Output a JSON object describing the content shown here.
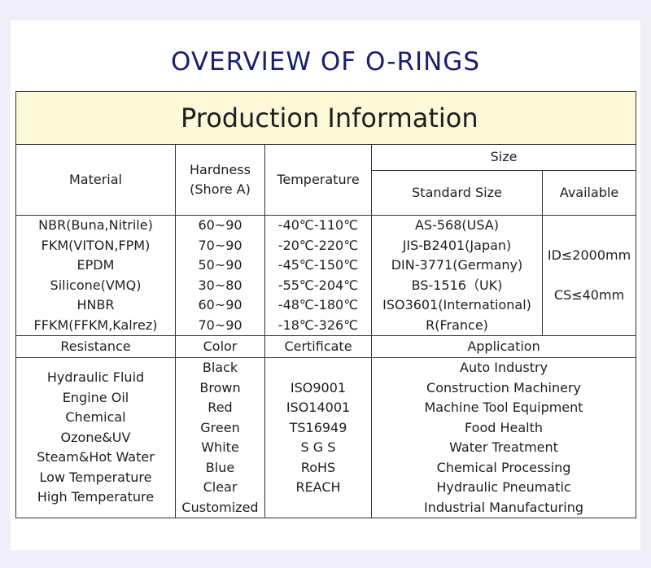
{
  "title": "OVERVIEW OF O-RINGS",
  "banner": "Production Information",
  "headers": {
    "material": "Material",
    "hardness_1": "Hardness",
    "hardness_2": "(Shore A)",
    "temperature": "Temperature",
    "size": "Size",
    "standard_size": "Standard Size",
    "available": "Available"
  },
  "materials": [
    "NBR(Buna,Nitrile)",
    "FKM(VITON,FPM)",
    "EPDM",
    "Silicone(VMQ)",
    "HNBR",
    "FFKM(FFKM,Kalrez)"
  ],
  "hardness": [
    "60~90",
    "70~90",
    "50~90",
    "30~80",
    "60~90",
    "70~90"
  ],
  "temperature": [
    "-40℃-110℃",
    "-20℃-220℃",
    "-45℃-150℃",
    "-55℃-204℃",
    "-48℃-180℃",
    "-18℃-326℃"
  ],
  "standards": [
    "AS-568(USA)",
    "JIS-B2401(Japan)",
    "DIN-3771(Germany)",
    "BS-1516（UK)",
    "ISO3601(International)",
    "R(France)"
  ],
  "available": [
    "ID≤2000mm",
    "CS≤40mm"
  ],
  "headers2": {
    "resistance": "Resistance",
    "color": "Color",
    "certificate": "Certificate",
    "application": "Application"
  },
  "resistance": [
    "Hydraulic Fluid",
    "Engine Oil",
    "Chemical",
    "Ozone&UV",
    "Steam&Hot Water",
    "Low Temperature",
    "High Temperature"
  ],
  "colors": [
    "Black",
    "Brown",
    "Red",
    "Green",
    "White",
    "Blue",
    "Clear",
    "Customized"
  ],
  "certificates": [
    "ISO9001",
    "ISO14001",
    "TS16949",
    "S G S",
    "RoHS",
    "REACH"
  ],
  "applications": [
    "Auto Industry",
    "Construction Machinery",
    "Machine Tool Equipment",
    "Food Health",
    "Water Treatment",
    "Chemical Processing",
    "Hydraulic Pneumatic",
    "Industrial Manufacturing"
  ]
}
